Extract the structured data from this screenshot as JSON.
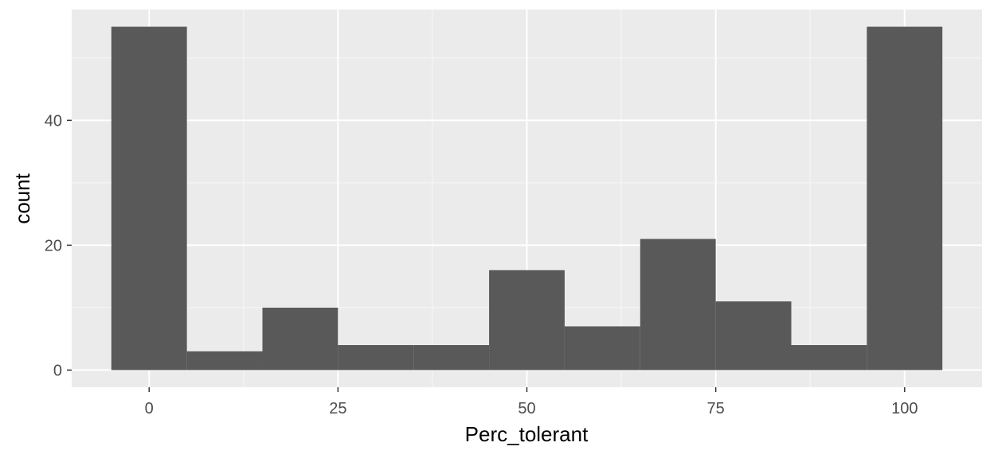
{
  "chart_data": {
    "type": "bar",
    "subtype": "histogram",
    "xlabel": "Perc_tolerant",
    "ylabel": "count",
    "xlim": [
      -10.25,
      110.25
    ],
    "ylim": [
      -2.75,
      57.75
    ],
    "x_ticks": [
      0,
      25,
      50,
      75,
      100
    ],
    "y_ticks": [
      0,
      20,
      40
    ],
    "bin_width": 10,
    "bins": [
      {
        "start": -5,
        "end": 5,
        "count": 55
      },
      {
        "start": 5,
        "end": 15,
        "count": 3
      },
      {
        "start": 15,
        "end": 25,
        "count": 10
      },
      {
        "start": 25,
        "end": 35,
        "count": 4
      },
      {
        "start": 35,
        "end": 45,
        "count": 4
      },
      {
        "start": 45,
        "end": 55,
        "count": 16
      },
      {
        "start": 55,
        "end": 65,
        "count": 7
      },
      {
        "start": 65,
        "end": 75,
        "count": 21
      },
      {
        "start": 75,
        "end": 85,
        "count": 11
      },
      {
        "start": 85,
        "end": 95,
        "count": 4
      },
      {
        "start": 95,
        "end": 105,
        "count": 55
      }
    ],
    "grid": true,
    "legend": "none",
    "colors": {
      "panel_background": "#ebebeb",
      "grid_major": "#ffffff",
      "grid_minor": "#f5f5f5",
      "bar_fill": "#595959",
      "tick_mark": "#333333",
      "tick_label": "#4d4d4d"
    }
  }
}
